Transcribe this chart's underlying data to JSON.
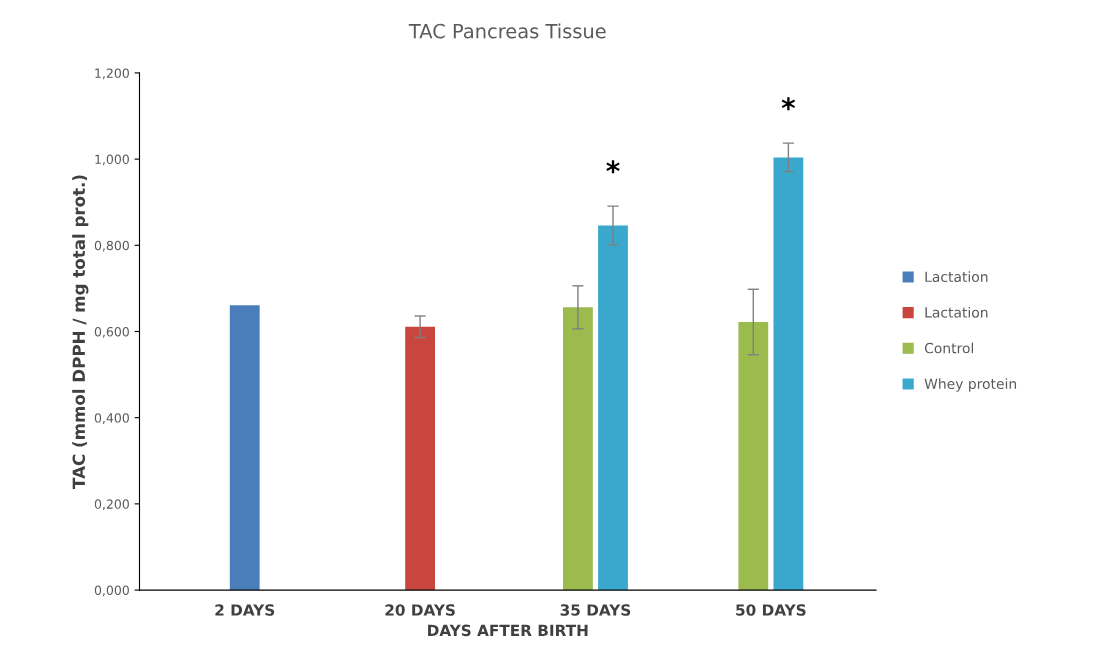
{
  "chart_data": {
    "type": "bar",
    "title": "TAC Pancreas Tissue",
    "xlabel": "DAYS AFTER BIRTH",
    "ylabel": "TAC (mmol DPPH / mg total prot.)",
    "categories": [
      "2 DAYS",
      "20 DAYS",
      "35 DAYS",
      "50 DAYS"
    ],
    "series": [
      {
        "name": "Lactation",
        "color": "#4a7ebb",
        "values": [
          0.661,
          null,
          null,
          null
        ],
        "errors": [
          null,
          null,
          null,
          null
        ]
      },
      {
        "name": "Lactation",
        "color": "#c9463f",
        "values": [
          null,
          0.611,
          null,
          null
        ],
        "errors": [
          null,
          0.025,
          null,
          null
        ]
      },
      {
        "name": "Control",
        "color": "#9bbb4f",
        "values": [
          null,
          null,
          0.656,
          0.622
        ],
        "errors": [
          null,
          null,
          0.05,
          0.076
        ]
      },
      {
        "name": "Whey protein",
        "color": "#3aa8cc",
        "values": [
          null,
          null,
          0.846,
          1.004
        ],
        "errors": [
          null,
          null,
          0.045,
          0.033
        ]
      }
    ],
    "ylim": [
      0,
      1.2
    ],
    "yticks": [
      {
        "value": 0,
        "label": "0,000"
      },
      {
        "value": 0.2,
        "label": "0,200"
      },
      {
        "value": 0.4,
        "label": "0,400"
      },
      {
        "value": 0.6,
        "label": "0,600"
      },
      {
        "value": 0.8,
        "label": "0,800"
      },
      {
        "value": 1.0,
        "label": "1,000"
      },
      {
        "value": 1.2,
        "label": "1,200"
      }
    ],
    "annotations": [
      "*",
      "*"
    ],
    "legend": "right",
    "grid": false
  }
}
